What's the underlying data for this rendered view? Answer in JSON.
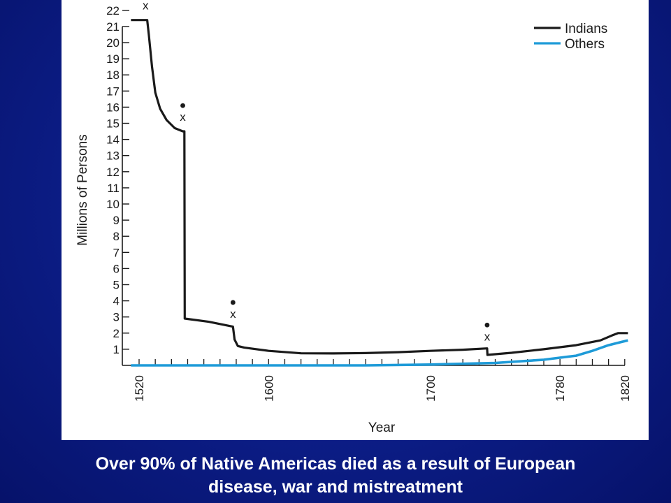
{
  "caption": {
    "line1": "Over 90% of Native Americas died as a result of European",
    "line2": "disease, war and mistreatment"
  },
  "chart_data": {
    "type": "line",
    "title": "",
    "xlabel": "Year",
    "ylabel": "Millions of Persons",
    "xlim": [
      1520,
      1830
    ],
    "ylim": [
      0,
      22
    ],
    "x_tick_labels": [
      "1520",
      "1600",
      "1700",
      "1780",
      "1820"
    ],
    "x_tick_values": [
      1520,
      1600,
      1700,
      1780,
      1820
    ],
    "minor_x_step": 10,
    "y_ticks": [
      1,
      2,
      3,
      4,
      5,
      6,
      7,
      8,
      9,
      10,
      11,
      12,
      13,
      14,
      15,
      16,
      17,
      18,
      19,
      20,
      21,
      22
    ],
    "grid": false,
    "legend_position": "top-right",
    "series": [
      {
        "name": "Indians",
        "color": "#1a1a1a",
        "x": [
          1515,
          1525,
          1526,
          1528,
          1530,
          1533,
          1537,
          1542,
          1547,
          1548,
          1548.2,
          1563,
          1578,
          1579,
          1581,
          1585,
          1600,
          1620,
          1640,
          1660,
          1680,
          1700,
          1720,
          1735,
          1735.2,
          1750,
          1770,
          1790,
          1805,
          1812,
          1816,
          1822
        ],
        "values": [
          21.4,
          21.4,
          20.5,
          18.5,
          16.9,
          15.9,
          15.2,
          14.7,
          14.5,
          14.5,
          2.9,
          2.7,
          2.4,
          1.6,
          1.2,
          1.1,
          0.9,
          0.75,
          0.74,
          0.76,
          0.82,
          0.9,
          0.97,
          1.05,
          0.65,
          0.78,
          1.0,
          1.25,
          1.55,
          1.85,
          2.0,
          2.0
        ]
      },
      {
        "name": "Others",
        "color": "#1e9bd8",
        "x": [
          1515,
          1600,
          1660,
          1700,
          1740,
          1770,
          1790,
          1800,
          1810,
          1822
        ],
        "values": [
          0.0,
          0.0,
          0.0,
          0.05,
          0.15,
          0.35,
          0.6,
          0.9,
          1.25,
          1.55
        ]
      }
    ],
    "annotations": [
      {
        "x": 1524,
        "y": 21.7,
        "label": "x"
      },
      {
        "x": 1547,
        "y": 14.8,
        "label": "x"
      },
      {
        "x": 1578,
        "y": 2.6,
        "label": "x"
      },
      {
        "x": 1735,
        "y": 1.2,
        "label": "x"
      }
    ]
  }
}
